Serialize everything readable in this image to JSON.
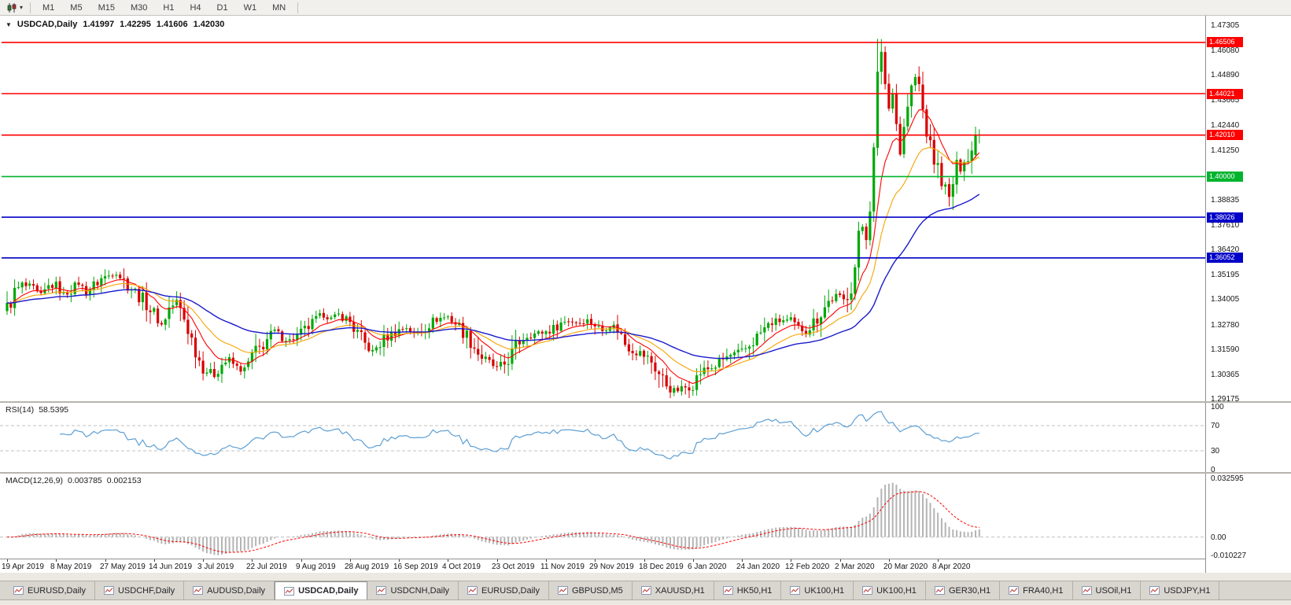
{
  "colors": {
    "up": "#00A806",
    "down": "#D80000",
    "ma_fast": "#FF0000",
    "ma_mid": "#F5A300",
    "ma_slow": "#1A1ACD",
    "rsi_line": "#5D9FD3",
    "macd_hist": "#B4B4B4",
    "macd_signal": "#FF0000",
    "level_dash": "#C0C0C0"
  },
  "toolbar": {
    "chart_type_icon": "candlestick-chart-icon",
    "timeframes": [
      "M1",
      "M5",
      "M15",
      "M30",
      "H1",
      "H4",
      "D1",
      "W1",
      "MN"
    ]
  },
  "chart_header": {
    "collapse_icon": "▼",
    "symbol": "USDCAD,Daily",
    "open": "1.41997",
    "high": "1.42295",
    "low": "1.41606",
    "close": "1.42030"
  },
  "price_axis": {
    "labels": [
      "1.47305",
      "1.46080",
      "1.44890",
      "1.43665",
      "1.42440",
      "1.41250",
      "1.40025",
      "1.38835",
      "1.37610",
      "1.36420",
      "1.35195",
      "1.34005",
      "1.32780",
      "1.31590",
      "1.30365",
      "1.29175"
    ]
  },
  "rsi_panel": {
    "title": "RSI(14)",
    "value": "58.5395",
    "axis_labels": [
      "100",
      "70",
      "30",
      "0"
    ]
  },
  "macd_panel": {
    "title": "MACD(12,26,9)",
    "value_macd": "0.003785",
    "value_signal": "0.002153",
    "axis_labels": [
      "0.032595",
      "0.00",
      "-0.010227"
    ]
  },
  "tabs": {
    "items": [
      "EURUSD,Daily",
      "USDCHF,Daily",
      "AUDUSD,Daily",
      "USDCAD,Daily",
      "USDCNH,Daily",
      "EURUSD,Daily",
      "GBPUSD,M5",
      "XAUUSD,H1",
      "HK50,H1",
      "UK100,H1",
      "UK100,H1",
      "GER30,H1",
      "FRA40,H1",
      "USOil,H1",
      "USDJPY,H1"
    ],
    "active_index": 3
  },
  "chart_data": {
    "type": "candlestick",
    "symbol": "USDCAD",
    "timeframe": "Daily",
    "num_candles": 259,
    "ylim": [
      1.29175,
      1.47305
    ],
    "last_candle": {
      "open": 1.41997,
      "high": 1.42295,
      "low": 1.41606,
      "close": 1.4203
    },
    "close_anchors": [
      [
        0,
        1.336
      ],
      [
        2,
        1.3435
      ],
      [
        4,
        1.3475
      ],
      [
        7,
        1.345
      ],
      [
        9,
        1.342
      ],
      [
        11,
        1.3465
      ],
      [
        13,
        1.347
      ],
      [
        15,
        1.3425
      ],
      [
        17,
        1.3455
      ],
      [
        19,
        1.3485
      ],
      [
        21,
        1.344
      ],
      [
        23,
        1.347
      ],
      [
        25,
        1.3505
      ],
      [
        27,
        1.352
      ],
      [
        29,
        1.354
      ],
      [
        31,
        1.3495
      ],
      [
        33,
        1.346
      ],
      [
        35,
        1.342
      ],
      [
        37,
        1.3385
      ],
      [
        39,
        1.333
      ],
      [
        41,
        1.328
      ],
      [
        43,
        1.336
      ],
      [
        45,
        1.339
      ],
      [
        47,
        1.331
      ],
      [
        49,
        1.321
      ],
      [
        51,
        1.311
      ],
      [
        53,
        1.306
      ],
      [
        55,
        1.304
      ],
      [
        57,
        1.309
      ],
      [
        59,
        1.311
      ],
      [
        61,
        1.307
      ],
      [
        63,
        1.3055
      ],
      [
        65,
        1.313
      ],
      [
        67,
        1.3165
      ],
      [
        69,
        1.321
      ],
      [
        71,
        1.325
      ],
      [
        73,
        1.3225
      ],
      [
        75,
        1.3205
      ],
      [
        78,
        1.324
      ],
      [
        80,
        1.327
      ],
      [
        82,
        1.33
      ],
      [
        84,
        1.333
      ],
      [
        86,
        1.331
      ],
      [
        88,
        1.333
      ],
      [
        91,
        1.3295
      ],
      [
        93,
        1.3235
      ],
      [
        95,
        1.3185
      ],
      [
        97,
        1.315
      ],
      [
        99,
        1.319
      ],
      [
        101,
        1.3225
      ],
      [
        104,
        1.3255
      ],
      [
        106,
        1.327
      ],
      [
        108,
        1.3235
      ],
      [
        110,
        1.3255
      ],
      [
        112,
        1.3285
      ],
      [
        114,
        1.331
      ],
      [
        117,
        1.332
      ],
      [
        119,
        1.329
      ],
      [
        121,
        1.325
      ],
      [
        123,
        1.3205
      ],
      [
        125,
        1.3145
      ],
      [
        127,
        1.3105
      ],
      [
        130,
        1.307
      ],
      [
        132,
        1.309
      ],
      [
        134,
        1.314
      ],
      [
        136,
        1.32
      ],
      [
        138,
        1.323
      ],
      [
        141,
        1.324
      ],
      [
        143,
        1.3248
      ],
      [
        145,
        1.3262
      ],
      [
        147,
        1.329
      ],
      [
        149,
        1.3302
      ],
      [
        152,
        1.3292
      ],
      [
        154,
        1.3302
      ],
      [
        156,
        1.3282
      ],
      [
        158,
        1.3252
      ],
      [
        160,
        1.328
      ],
      [
        162,
        1.3262
      ],
      [
        164,
        1.3192
      ],
      [
        166,
        1.3162
      ],
      [
        169,
        1.3132
      ],
      [
        171,
        1.3102
      ],
      [
        173,
        1.3042
      ],
      [
        175,
        1.2992
      ],
      [
        177,
        1.2958
      ],
      [
        179,
        1.2968
      ],
      [
        182,
        1.2996
      ],
      [
        184,
        1.305
      ],
      [
        186,
        1.3066
      ],
      [
        188,
        1.3082
      ],
      [
        190,
        1.3112
      ],
      [
        192,
        1.3132
      ],
      [
        195,
        1.3146
      ],
      [
        197,
        1.3182
      ],
      [
        199,
        1.3222
      ],
      [
        201,
        1.3262
      ],
      [
        203,
        1.3292
      ],
      [
        206,
        1.3302
      ],
      [
        208,
        1.3296
      ],
      [
        210,
        1.3262
      ],
      [
        212,
        1.3252
      ],
      [
        214,
        1.3292
      ],
      [
        216,
        1.3342
      ],
      [
        218,
        1.3392
      ],
      [
        220,
        1.3422
      ],
      [
        222,
        1.3398
      ],
      [
        224,
        1.347
      ],
      [
        225,
        1.356
      ],
      [
        226,
        1.3705
      ],
      [
        227,
        1.3762
      ],
      [
        228,
        1.3722
      ],
      [
        229,
        1.3862
      ],
      [
        230,
        1.412
      ],
      [
        231,
        1.448
      ],
      [
        232,
        1.462
      ],
      [
        233,
        1.445
      ],
      [
        234,
        1.433
      ],
      [
        235,
        1.444
      ],
      [
        236,
        1.426
      ],
      [
        237,
        1.412
      ],
      [
        238,
        1.423
      ],
      [
        239,
        1.434
      ],
      [
        240,
        1.442
      ],
      [
        241,
        1.448
      ],
      [
        242,
        1.444
      ],
      [
        243,
        1.432
      ],
      [
        244,
        1.422
      ],
      [
        245,
        1.414
      ],
      [
        246,
        1.408
      ],
      [
        247,
        1.404
      ],
      [
        248,
        1.399
      ],
      [
        249,
        1.394
      ],
      [
        250,
        1.389
      ],
      [
        251,
        1.397
      ],
      [
        252,
        1.404
      ],
      [
        253,
        1.406
      ],
      [
        254,
        1.41
      ],
      [
        255,
        1.408
      ],
      [
        256,
        1.412
      ],
      [
        257,
        1.4195
      ],
      [
        258,
        1.4203
      ]
    ],
    "overrides": {
      "231": {
        "h": 1.4668
      },
      "250": {
        "l": 1.3855
      },
      "257": {
        "o": 1.4105,
        "h": 1.4242,
        "l": 1.4088,
        "c": 1.4198
      },
      "258": {
        "o": 1.41997,
        "h": 1.42295,
        "l": 1.41606,
        "c": 1.4203
      }
    },
    "moving_averages": [
      {
        "name": "fast",
        "period": 10,
        "color": "#FF0000",
        "width": 1.1
      },
      {
        "name": "mid",
        "period": 21,
        "color": "#F5A300",
        "width": 1.1
      },
      {
        "name": "slow",
        "period": 50,
        "color": "#1A1ACD",
        "width": 1.4
      }
    ],
    "hlines": [
      {
        "price": 1.46506,
        "label": "1.46506",
        "color": "#FF0000"
      },
      {
        "price": 1.44021,
        "label": "1.44021",
        "color": "#FF0000"
      },
      {
        "price": 1.4201,
        "label": "1.42010",
        "color": "#FF0000"
      },
      {
        "price": 1.4,
        "label": "1.40000",
        "color": "#00B42D"
      },
      {
        "price": 1.38026,
        "label": "1.38026",
        "color": "#0000C8"
      },
      {
        "price": 1.36052,
        "label": "1.36052",
        "color": "#0000C8"
      }
    ],
    "indicators": {
      "rsi": {
        "period": 14,
        "levels": [
          70,
          30
        ],
        "range": [
          0,
          100
        ],
        "current": 58.5395
      },
      "macd": {
        "fast": 12,
        "slow": 26,
        "signal": 9,
        "range": [
          -0.010227,
          0.032595
        ],
        "current": [
          0.003785,
          0.002153
        ]
      }
    },
    "x_axis": {
      "labels": [
        "19 Apr 2019",
        "8 May 2019",
        "27 May 2019",
        "14 Jun 2019",
        "3 Jul 2019",
        "22 Jul 2019",
        "9 Aug 2019",
        "28 Aug 2019",
        "16 Sep 2019",
        "4 Oct 2019",
        "23 Oct 2019",
        "11 Nov 2019",
        "29 Nov 2019",
        "18 Dec 2019",
        "6 Jan 2020",
        "24 Jan 2020",
        "12 Feb 2020",
        "2 Mar 2020",
        "20 Mar 2020",
        "8 Apr 2020"
      ],
      "label_indices": [
        0,
        13,
        26,
        39,
        52,
        65,
        78,
        91,
        104,
        117,
        130,
        143,
        156,
        169,
        182,
        195,
        208,
        221,
        234,
        247
      ]
    }
  }
}
